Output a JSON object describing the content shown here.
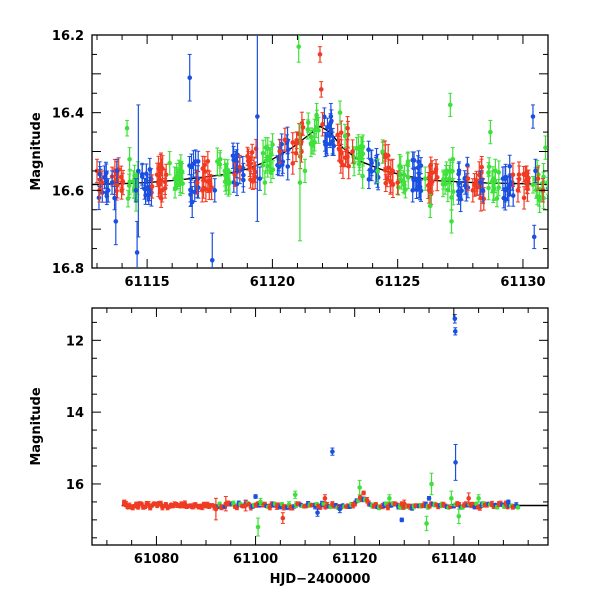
{
  "chart_data": [
    {
      "type": "scatter",
      "panel": "top",
      "ylabel": "Magnitude",
      "xlabel": "",
      "xlim": [
        61112.8,
        61131.0
      ],
      "ylim": [
        16.8,
        16.2
      ],
      "y_inverted": true,
      "xticks_labeled": [
        61115,
        61120,
        61125,
        61130
      ],
      "xticks_minor_step": 1,
      "yticks_labeled": [
        16.2,
        16.4,
        16.6,
        16.8
      ],
      "yticks_minor_step": 0.05,
      "colors": {
        "blue": "#1a4fe0",
        "red": "#f03a22",
        "green": "#3ee03a",
        "model": "#000000"
      },
      "model_curve": {
        "name": "model",
        "x": [
          61112.8,
          61114,
          61115,
          61116,
          61117,
          61118,
          61119,
          61120,
          61120.8,
          61121.5,
          61121.9,
          61122.3,
          61122.8,
          61123.5,
          61124.5,
          61125.5,
          61126.5,
          61128,
          61130,
          61131
        ],
        "y": [
          16.585,
          16.583,
          16.58,
          16.575,
          16.568,
          16.56,
          16.545,
          16.52,
          16.49,
          16.455,
          16.435,
          16.45,
          16.49,
          16.525,
          16.55,
          16.565,
          16.575,
          16.58,
          16.583,
          16.585
        ]
      },
      "series": [
        {
          "name": "blue",
          "points": [
            {
              "x": 61113.6,
              "y": 16.58,
              "err": 0.03
            },
            {
              "x": 61113.7,
              "y": 16.62,
              "err": 0.03
            },
            {
              "x": 61113.75,
              "y": 16.68,
              "err": 0.06
            },
            {
              "x": 61113.8,
              "y": 16.55,
              "err": 0.03
            },
            {
              "x": 61114.55,
              "y": 16.6,
              "err": 0.03
            },
            {
              "x": 61114.6,
              "y": 16.76,
              "err": 0.08
            },
            {
              "x": 61114.65,
              "y": 16.55,
              "err": 0.17
            },
            {
              "x": 61116.7,
              "y": 16.31,
              "err": 0.06
            },
            {
              "x": 61116.75,
              "y": 16.6,
              "err": 0.04
            },
            {
              "x": 61116.8,
              "y": 16.63,
              "err": 0.04
            },
            {
              "x": 61117.6,
              "y": 16.78,
              "err": 0.07
            },
            {
              "x": 61117.7,
              "y": 16.6,
              "err": 0.03
            },
            {
              "x": 61119.4,
              "y": 16.41,
              "err": 0.27
            },
            {
              "x": 61119.5,
              "y": 16.57,
              "err": 0.03
            },
            {
              "x": 61122.3,
              "y": 16.46,
              "err": 0.03
            },
            {
              "x": 61122.4,
              "y": 16.48,
              "err": 0.03
            },
            {
              "x": 61125.6,
              "y": 16.6,
              "err": 0.03
            },
            {
              "x": 61125.7,
              "y": 16.57,
              "err": 0.03
            },
            {
              "x": 61128.3,
              "y": 16.58,
              "err": 0.03
            },
            {
              "x": 61128.4,
              "y": 16.6,
              "err": 0.03
            },
            {
              "x": 61129.2,
              "y": 16.57,
              "err": 0.03
            },
            {
              "x": 61129.3,
              "y": 16.6,
              "err": 0.03
            },
            {
              "x": 61130.4,
              "y": 16.41,
              "err": 0.03
            },
            {
              "x": 61130.45,
              "y": 16.72,
              "err": 0.03
            },
            {
              "x": 61130.5,
              "y": 16.55,
              "err": 0.03
            }
          ]
        },
        {
          "name": "red",
          "points": [
            {
              "x": 61113.0,
              "y": 16.55,
              "err": 0.03
            },
            {
              "x": 61113.1,
              "y": 16.6,
              "err": 0.03
            },
            {
              "x": 61113.2,
              "y": 16.58,
              "err": 0.03
            },
            {
              "x": 61115.2,
              "y": 16.59,
              "err": 0.03
            },
            {
              "x": 61115.4,
              "y": 16.56,
              "err": 0.03
            },
            {
              "x": 61115.6,
              "y": 16.6,
              "err": 0.03
            },
            {
              "x": 61117.0,
              "y": 16.58,
              "err": 0.03
            },
            {
              "x": 61117.2,
              "y": 16.6,
              "err": 0.03
            },
            {
              "x": 61118.5,
              "y": 16.56,
              "err": 0.03
            },
            {
              "x": 61118.7,
              "y": 16.54,
              "err": 0.03
            },
            {
              "x": 61120.3,
              "y": 16.5,
              "err": 0.03
            },
            {
              "x": 61120.5,
              "y": 16.47,
              "err": 0.03
            },
            {
              "x": 61121.9,
              "y": 16.25,
              "err": 0.02
            },
            {
              "x": 61121.95,
              "y": 16.34,
              "err": 0.02
            },
            {
              "x": 61122.0,
              "y": 16.43,
              "err": 0.03
            },
            {
              "x": 61123.0,
              "y": 16.44,
              "err": 0.03
            },
            {
              "x": 61123.2,
              "y": 16.5,
              "err": 0.03
            },
            {
              "x": 61124.8,
              "y": 16.55,
              "err": 0.03
            },
            {
              "x": 61125.0,
              "y": 16.58,
              "err": 0.03
            },
            {
              "x": 61127.8,
              "y": 16.57,
              "err": 0.03
            },
            {
              "x": 61128.0,
              "y": 16.6,
              "err": 0.03
            },
            {
              "x": 61129.6,
              "y": 16.56,
              "err": 0.03
            },
            {
              "x": 61129.8,
              "y": 16.6,
              "err": 0.03
            },
            {
              "x": 61130.6,
              "y": 16.57,
              "err": 0.03
            },
            {
              "x": 61130.8,
              "y": 16.6,
              "err": 0.03
            }
          ]
        },
        {
          "name": "green",
          "points": [
            {
              "x": 61114.2,
              "y": 16.44,
              "err": 0.02
            },
            {
              "x": 61114.3,
              "y": 16.52,
              "err": 0.03
            },
            {
              "x": 61115.9,
              "y": 16.53,
              "err": 0.03
            },
            {
              "x": 61116.1,
              "y": 16.57,
              "err": 0.03
            },
            {
              "x": 61118.1,
              "y": 16.55,
              "err": 0.03
            },
            {
              "x": 61118.3,
              "y": 16.58,
              "err": 0.03
            },
            {
              "x": 61119.7,
              "y": 16.58,
              "err": 0.03
            },
            {
              "x": 61119.9,
              "y": 16.52,
              "err": 0.03
            },
            {
              "x": 61121.05,
              "y": 16.23,
              "err": 0.04
            },
            {
              "x": 61121.1,
              "y": 16.58,
              "err": 0.15
            },
            {
              "x": 61121.3,
              "y": 16.55,
              "err": 0.03
            },
            {
              "x": 61122.7,
              "y": 16.4,
              "err": 0.03
            },
            {
              "x": 61122.9,
              "y": 16.46,
              "err": 0.03
            },
            {
              "x": 61124.2,
              "y": 16.55,
              "err": 0.03
            },
            {
              "x": 61124.4,
              "y": 16.5,
              "err": 0.03
            },
            {
              "x": 61126.1,
              "y": 16.57,
              "err": 0.03
            },
            {
              "x": 61126.3,
              "y": 16.64,
              "err": 0.03
            },
            {
              "x": 61127.1,
              "y": 16.38,
              "err": 0.03
            },
            {
              "x": 61127.15,
              "y": 16.68,
              "err": 0.03
            },
            {
              "x": 61127.2,
              "y": 16.52,
              "err": 0.03
            },
            {
              "x": 61128.7,
              "y": 16.45,
              "err": 0.03
            },
            {
              "x": 61128.9,
              "y": 16.55,
              "err": 0.03
            },
            {
              "x": 61130.9,
              "y": 16.49,
              "err": 0.03
            },
            {
              "x": 61131.0,
              "y": 16.58,
              "err": 0.03
            }
          ]
        }
      ]
    },
    {
      "type": "scatter",
      "panel": "bottom",
      "ylabel": "Magnitude",
      "xlabel": "HJD−2400000",
      "xlim": [
        61067.0,
        61159.0
      ],
      "ylim": [
        17.7,
        11.1
      ],
      "y_inverted": true,
      "xticks_labeled": [
        61080,
        61100,
        61120,
        61140
      ],
      "xticks_minor_step": 5,
      "yticks_labeled": [
        12,
        14,
        16
      ],
      "yticks_minor_step": 0.5,
      "model_line": {
        "x": [
          61073,
          61159
        ],
        "y_base": 16.6,
        "bump_x": 61121.5,
        "bump_y": 16.4
      },
      "series": [
        {
          "name": "red",
          "points": [
            {
              "x": 61073.5,
              "y": 16.5,
              "err": 0.05
            },
            {
              "x": 61092.0,
              "y": 16.7,
              "err": 0.3
            },
            {
              "x": 61094.0,
              "y": 16.55,
              "err": 0.2
            },
            {
              "x": 61098.0,
              "y": 16.6,
              "err": 0.15
            },
            {
              "x": 61105.5,
              "y": 16.95,
              "err": 0.15
            },
            {
              "x": 61114.0,
              "y": 16.4,
              "err": 0.1
            },
            {
              "x": 61121.8,
              "y": 16.25,
              "err": 0.05
            },
            {
              "x": 61130.0,
              "y": 16.55,
              "err": 0.1
            },
            {
              "x": 61143.0,
              "y": 16.4,
              "err": 0.15
            }
          ]
        },
        {
          "name": "blue",
          "points": [
            {
              "x": 61100.0,
              "y": 16.35,
              "err": 0.05
            },
            {
              "x": 61112.5,
              "y": 16.8,
              "err": 0.1
            },
            {
              "x": 61115.5,
              "y": 15.1,
              "err": 0.1
            },
            {
              "x": 61117.0,
              "y": 16.7,
              "err": 0.1
            },
            {
              "x": 61129.5,
              "y": 17.0,
              "err": 0.05
            },
            {
              "x": 61135.0,
              "y": 16.4,
              "err": 0.05
            },
            {
              "x": 61140.2,
              "y": 11.4,
              "err": 0.12
            },
            {
              "x": 61140.3,
              "y": 11.75,
              "err": 0.1
            },
            {
              "x": 61140.35,
              "y": 15.4,
              "err": 0.5
            },
            {
              "x": 61151.0,
              "y": 16.5,
              "err": 0.05
            }
          ]
        },
        {
          "name": "green",
          "points": [
            {
              "x": 61100.5,
              "y": 17.2,
              "err": 0.25
            },
            {
              "x": 61101.0,
              "y": 16.5,
              "err": 0.1
            },
            {
              "x": 61108.0,
              "y": 16.3,
              "err": 0.1
            },
            {
              "x": 61121.0,
              "y": 16.1,
              "err": 0.2
            },
            {
              "x": 61127.0,
              "y": 16.4,
              "err": 0.1
            },
            {
              "x": 61134.5,
              "y": 17.1,
              "err": 0.2
            },
            {
              "x": 61135.5,
              "y": 16.0,
              "err": 0.3
            },
            {
              "x": 61139.5,
              "y": 16.4,
              "err": 0.2
            },
            {
              "x": 61141.0,
              "y": 16.9,
              "err": 0.2
            },
            {
              "x": 61145.0,
              "y": 16.4,
              "err": 0.1
            }
          ]
        }
      ]
    }
  ]
}
